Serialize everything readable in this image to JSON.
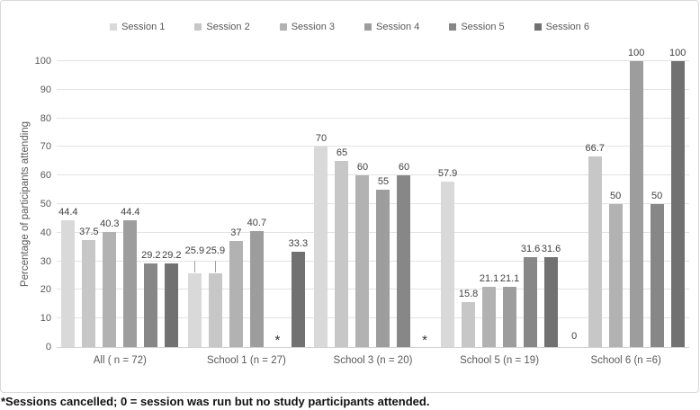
{
  "chart_data": {
    "type": "bar",
    "title": "",
    "ylabel": "Percentage of participants attending",
    "xlabel": "",
    "ylim": [
      0,
      100
    ],
    "ytick_step": 10,
    "grid": true,
    "legend_position": "top",
    "categories": [
      "All ( n = 72)",
      "School 1 (n = 27)",
      "School 3 (n = 20)",
      "School 5 (n = 19)",
      "School 6 (n =6)"
    ],
    "series": [
      {
        "name": "Session 1",
        "color": "#d9d9d9",
        "values": [
          44.4,
          25.9,
          70,
          57.9,
          0
        ]
      },
      {
        "name": "Session 2",
        "color": "#c7c7c7",
        "values": [
          37.5,
          25.9,
          65,
          15.8,
          66.7
        ]
      },
      {
        "name": "Session 3",
        "color": "#b2b2b2",
        "values": [
          40.3,
          37,
          60,
          21.1,
          50
        ]
      },
      {
        "name": "Session 4",
        "color": "#9d9d9d",
        "values": [
          44.4,
          40.7,
          55,
          21.1,
          100
        ]
      },
      {
        "name": "Session 5",
        "color": "#878787",
        "values": [
          29.2,
          null,
          60,
          31.6,
          50
        ]
      },
      {
        "name": "Session 6",
        "color": "#717171",
        "values": [
          29.2,
          33.3,
          null,
          31.6,
          100
        ]
      }
    ],
    "null_marker": "*",
    "zero_label": "0",
    "raised_labels": [
      {
        "series": 0,
        "category": 1
      },
      {
        "series": 1,
        "category": 1
      }
    ],
    "footnote": "*Sessions cancelled; 0 = session was run but no study participants attended."
  }
}
